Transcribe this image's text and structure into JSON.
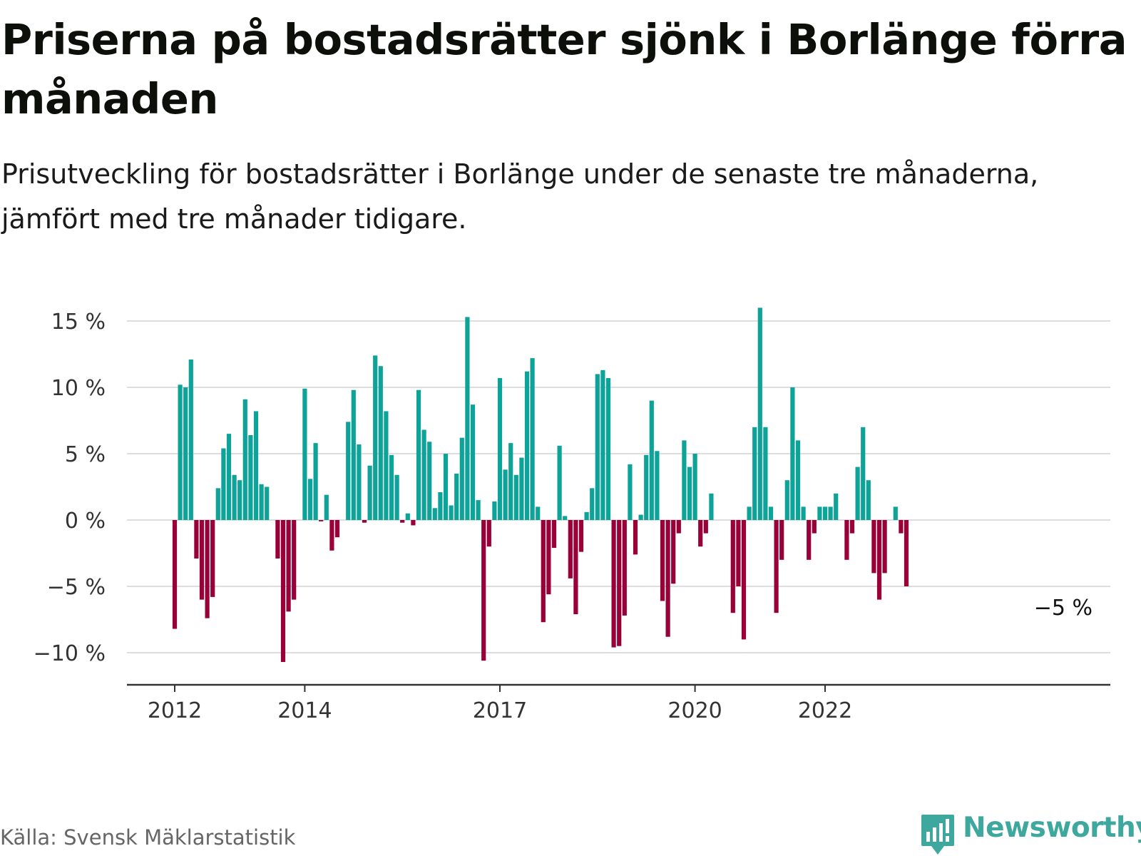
{
  "title": "Priserna på bostadsrätter sjönk i Borlänge förra månaden",
  "subtitle": "Prisutveckling för bostadsrätter i Borlänge under de senaste tre månaderna, jämfört med tre månader tidigare.",
  "source": "Källa: Svensk Mäklarstatistik",
  "brand": {
    "name": "Newsworthy",
    "icon": "bar-chart-speech-bubble-icon",
    "color": "#3ea89f"
  },
  "chart_data": {
    "type": "bar",
    "title": "Priserna på bostadsrätter sjönk i Borlänge förra månaden",
    "subtitle": "Prisutveckling för bostadsrätter i Borlänge under de senaste tre månaderna, jämfört med tre månader tidigare.",
    "xlabel": "",
    "ylabel": "",
    "x_start": "2012-01",
    "x_end": "2023-01",
    "ylim": [
      -12.5,
      16.5
    ],
    "yticks": [
      {
        "value": 15,
        "label": "15 %"
      },
      {
        "value": 10,
        "label": "10 %"
      },
      {
        "value": 5,
        "label": "5 %"
      },
      {
        "value": 0,
        "label": "0 %"
      },
      {
        "value": -5,
        "label": "−5 %"
      },
      {
        "value": -10,
        "label": "−10 %"
      }
    ],
    "xticks": [
      {
        "date": "2012-01",
        "label": "2012"
      },
      {
        "date": "2014-01",
        "label": "2014"
      },
      {
        "date": "2017-01",
        "label": "2017"
      },
      {
        "date": "2020-01",
        "label": "2020"
      },
      {
        "date": "2022-01",
        "label": "2022"
      }
    ],
    "grid": true,
    "legend": "none",
    "colors": {
      "positive": "#0ea399",
      "negative": "#990038",
      "grid": "#dddddd",
      "axis": "#333333"
    },
    "annotation": {
      "date": "2023-01",
      "value": -5,
      "label": "−5 %"
    },
    "series": [
      {
        "values": [
          {
            "date": "2012-01",
            "value": -8.2
          },
          {
            "date": "2012-02",
            "value": 10.2
          },
          {
            "date": "2012-03",
            "value": 10.0
          },
          {
            "date": "2012-04",
            "value": 12.1
          },
          {
            "date": "2012-05",
            "value": -2.9
          },
          {
            "date": "2012-06",
            "value": -6.0
          },
          {
            "date": "2012-07",
            "value": -7.4
          },
          {
            "date": "2012-08",
            "value": -5.8
          },
          {
            "date": "2012-09",
            "value": 2.4
          },
          {
            "date": "2012-10",
            "value": 5.4
          },
          {
            "date": "2012-11",
            "value": 6.5
          },
          {
            "date": "2012-12",
            "value": 3.4
          },
          {
            "date": "2013-01",
            "value": 3.0
          },
          {
            "date": "2013-02",
            "value": 9.1
          },
          {
            "date": "2013-03",
            "value": 6.4
          },
          {
            "date": "2013-04",
            "value": 8.2
          },
          {
            "date": "2013-05",
            "value": 2.7
          },
          {
            "date": "2013-06",
            "value": 2.5
          },
          {
            "date": "2013-07",
            "value": null
          },
          {
            "date": "2013-08",
            "value": -2.9
          },
          {
            "date": "2013-09",
            "value": -10.7
          },
          {
            "date": "2013-10",
            "value": -6.9
          },
          {
            "date": "2013-11",
            "value": -6.0
          },
          {
            "date": "2013-12",
            "value": null
          },
          {
            "date": "2014-01",
            "value": 9.9
          },
          {
            "date": "2014-02",
            "value": 3.1
          },
          {
            "date": "2014-03",
            "value": 5.8
          },
          {
            "date": "2014-04",
            "value": -0.1
          },
          {
            "date": "2014-05",
            "value": 1.9
          },
          {
            "date": "2014-06",
            "value": -2.3
          },
          {
            "date": "2014-07",
            "value": -1.3
          },
          {
            "date": "2014-08",
            "value": null
          },
          {
            "date": "2014-09",
            "value": 7.4
          },
          {
            "date": "2014-10",
            "value": 9.8
          },
          {
            "date": "2014-11",
            "value": 5.7
          },
          {
            "date": "2014-12",
            "value": -0.2
          },
          {
            "date": "2015-01",
            "value": 4.1
          },
          {
            "date": "2015-02",
            "value": 12.4
          },
          {
            "date": "2015-03",
            "value": 11.6
          },
          {
            "date": "2015-04",
            "value": 8.2
          },
          {
            "date": "2015-05",
            "value": 4.9
          },
          {
            "date": "2015-06",
            "value": 3.4
          },
          {
            "date": "2015-07",
            "value": -0.2
          },
          {
            "date": "2015-08",
            "value": 0.5
          },
          {
            "date": "2015-09",
            "value": -0.4
          },
          {
            "date": "2015-10",
            "value": 9.8
          },
          {
            "date": "2015-11",
            "value": 6.8
          },
          {
            "date": "2015-12",
            "value": 5.9
          },
          {
            "date": "2016-01",
            "value": 0.9
          },
          {
            "date": "2016-02",
            "value": 2.1
          },
          {
            "date": "2016-03",
            "value": 5.0
          },
          {
            "date": "2016-04",
            "value": 1.1
          },
          {
            "date": "2016-05",
            "value": 3.5
          },
          {
            "date": "2016-06",
            "value": 6.2
          },
          {
            "date": "2016-07",
            "value": 15.3
          },
          {
            "date": "2016-08",
            "value": 8.7
          },
          {
            "date": "2016-09",
            "value": 1.5
          },
          {
            "date": "2016-10",
            "value": -10.6
          },
          {
            "date": "2016-11",
            "value": -2.0
          },
          {
            "date": "2016-12",
            "value": 1.4
          },
          {
            "date": "2017-01",
            "value": 10.7
          },
          {
            "date": "2017-02",
            "value": 3.8
          },
          {
            "date": "2017-03",
            "value": 5.8
          },
          {
            "date": "2017-04",
            "value": 3.4
          },
          {
            "date": "2017-05",
            "value": 4.7
          },
          {
            "date": "2017-06",
            "value": 11.2
          },
          {
            "date": "2017-07",
            "value": 12.2
          },
          {
            "date": "2017-08",
            "value": 1.0
          },
          {
            "date": "2017-09",
            "value": -7.7
          },
          {
            "date": "2017-10",
            "value": -5.6
          },
          {
            "date": "2017-11",
            "value": -2.1
          },
          {
            "date": "2017-12",
            "value": 5.6
          },
          {
            "date": "2018-01",
            "value": 0.3
          },
          {
            "date": "2018-02",
            "value": -4.4
          },
          {
            "date": "2018-03",
            "value": -7.1
          },
          {
            "date": "2018-04",
            "value": -2.4
          },
          {
            "date": "2018-05",
            "value": 0.6
          },
          {
            "date": "2018-06",
            "value": 2.4
          },
          {
            "date": "2018-07",
            "value": 11.0
          },
          {
            "date": "2018-08",
            "value": 11.3
          },
          {
            "date": "2018-09",
            "value": 10.7
          },
          {
            "date": "2018-10",
            "value": -9.6
          },
          {
            "date": "2018-11",
            "value": -9.5
          },
          {
            "date": "2018-12",
            "value": -7.2
          },
          {
            "date": "2019-01",
            "value": 4.2
          },
          {
            "date": "2019-02",
            "value": -2.6
          },
          {
            "date": "2019-03",
            "value": 0.4
          },
          {
            "date": "2019-04",
            "value": 4.9
          },
          {
            "date": "2019-05",
            "value": 9.0
          },
          {
            "date": "2019-06",
            "value": 5.2
          },
          {
            "date": "2019-07",
            "value": -6.1
          },
          {
            "date": "2019-08",
            "value": -8.8
          },
          {
            "date": "2019-09",
            "value": -4.8
          },
          {
            "date": "2019-10",
            "value": -1.0
          },
          {
            "date": "2019-11",
            "value": 6.0
          },
          {
            "date": "2019-12",
            "value": 4.0
          },
          {
            "date": "2020-01",
            "value": 5.0
          },
          {
            "date": "2020-02",
            "value": -2.0
          },
          {
            "date": "2020-03",
            "value": -1.0
          },
          {
            "date": "2020-04",
            "value": 2.0
          },
          {
            "date": "2020-05",
            "value": null
          },
          {
            "date": "2020-06",
            "value": null
          },
          {
            "date": "2020-07",
            "value": null
          },
          {
            "date": "2020-08",
            "value": -7.0
          },
          {
            "date": "2020-09",
            "value": -5.0
          },
          {
            "date": "2020-10",
            "value": -9.0
          },
          {
            "date": "2020-11",
            "value": 1.0
          },
          {
            "date": "2020-12",
            "value": 7.0
          },
          {
            "date": "2021-01",
            "value": 16.0
          },
          {
            "date": "2021-02",
            "value": 7.0
          },
          {
            "date": "2021-03",
            "value": 1.0
          },
          {
            "date": "2021-04",
            "value": -7.0
          },
          {
            "date": "2021-05",
            "value": -3.0
          },
          {
            "date": "2021-06",
            "value": 3.0
          },
          {
            "date": "2021-07",
            "value": 10.0
          },
          {
            "date": "2021-08",
            "value": 6.0
          },
          {
            "date": "2021-09",
            "value": 1.0
          },
          {
            "date": "2021-10",
            "value": -3.0
          },
          {
            "date": "2021-11",
            "value": -1.0
          },
          {
            "date": "2021-12",
            "value": 1.0
          },
          {
            "date": "2022-01",
            "value": 1.0
          },
          {
            "date": "2022-02",
            "value": 1.0
          },
          {
            "date": "2022-03",
            "value": 2.0
          },
          {
            "date": "2022-04",
            "value": null
          },
          {
            "date": "2022-05",
            "value": -3.0
          },
          {
            "date": "2022-06",
            "value": -1.0
          },
          {
            "date": "2022-07",
            "value": 4.0
          },
          {
            "date": "2022-08",
            "value": 7.0
          },
          {
            "date": "2022-09",
            "value": 3.0
          },
          {
            "date": "2022-10",
            "value": -4.0
          },
          {
            "date": "2022-11",
            "value": -6.0
          },
          {
            "date": "2022-12",
            "value": -4.0
          },
          {
            "date": "2023-01",
            "value": null
          },
          {
            "date": "2023-02",
            "value": 1.0
          },
          {
            "date": "2023-03",
            "value": -1.0
          },
          {
            "date": "2023-04",
            "value": -5.0
          }
        ]
      }
    ]
  }
}
